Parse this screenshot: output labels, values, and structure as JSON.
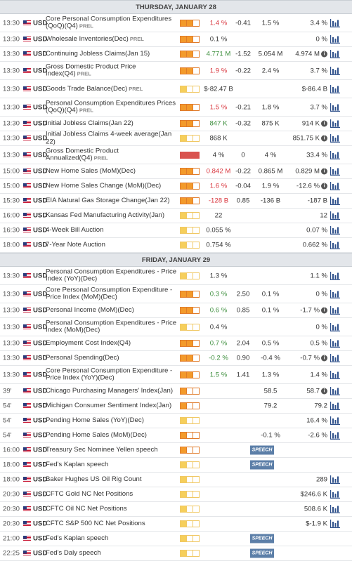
{
  "colors": {
    "high_impact": "#f39a2b",
    "low_impact": "#f6cf5b",
    "red_value": "#d9363e",
    "green_value": "#3e8f3e",
    "speech_badge": "#5c7fa8"
  },
  "icons": {
    "flag": "us-flag-icon",
    "chart": "bar-chart-icon",
    "info": "info-icon"
  },
  "days": [
    {
      "title": "THURSDAY, JANUARY 28",
      "rows": [
        {
          "time": "13:30",
          "currency": "USD",
          "event": "Core Personal Consumption Expenditures (QoQ)(Q4)",
          "prel": "PREL",
          "impact": "high",
          "actual": "1.4 %",
          "actual_color": "red",
          "deviation": "-0.41",
          "consensus": "1.5 %",
          "previous": "3.4 %",
          "info": false,
          "chart": true,
          "h": 26
        },
        {
          "time": "13:30",
          "currency": "USD",
          "event": "Wholesale Inventories(Dec)",
          "prel": "PREL",
          "impact": "high",
          "actual": "0.1 %",
          "actual_color": "",
          "deviation": "",
          "consensus": "",
          "previous": "0 %",
          "info": false,
          "chart": true,
          "h": 21
        },
        {
          "time": "13:30",
          "currency": "USD",
          "event": "Continuing Jobless Claims(Jan 15)",
          "prel": "",
          "impact": "high",
          "actual": "4.771 M",
          "actual_color": "green",
          "deviation": "-1.52",
          "consensus": "5.054 M",
          "previous": "4.974 M",
          "info": true,
          "chart": true,
          "h": 21
        },
        {
          "time": "13:30",
          "currency": "USD",
          "event": "Gross Domestic Product Price Index(Q4)",
          "prel": "PREL",
          "impact": "high",
          "actual": "1.9 %",
          "actual_color": "red",
          "deviation": "-0.22",
          "consensus": "2.4 %",
          "previous": "3.7 %",
          "info": false,
          "chart": true,
          "h": 26
        },
        {
          "time": "13:30",
          "currency": "USD",
          "event": "Goods Trade Balance(Dec)",
          "prel": "PREL",
          "impact": "low",
          "actual": "$-82.47 B",
          "actual_color": "",
          "deviation": "",
          "consensus": "",
          "previous": "$-86.4 B",
          "info": false,
          "chart": true,
          "h": 26
        },
        {
          "time": "13:30",
          "currency": "USD",
          "event": "Personal Consumption Expenditures Prices (QoQ)(Q4)",
          "prel": "PREL",
          "impact": "high",
          "actual": "1.5 %",
          "actual_color": "red",
          "deviation": "-0.21",
          "consensus": "1.8 %",
          "previous": "3.7 %",
          "info": false,
          "chart": true,
          "h": 26
        },
        {
          "time": "13:30",
          "currency": "USD",
          "event": "Initial Jobless Claims(Jan 22)",
          "prel": "",
          "impact": "high",
          "actual": "847 K",
          "actual_color": "green",
          "deviation": "-0.32",
          "consensus": "875 K",
          "previous": "914 K",
          "info": true,
          "chart": true,
          "h": 21
        },
        {
          "time": "13:30",
          "currency": "USD",
          "event": "Initial Jobless Claims 4-week average(Jan 22)",
          "prel": "",
          "impact": "low",
          "actual": "868 K",
          "actual_color": "",
          "deviation": "",
          "consensus": "",
          "previous": "851.75 K",
          "info": true,
          "chart": true,
          "h": 21
        },
        {
          "time": "13:30",
          "currency": "USD",
          "event": "Gross Domestic Product Annualized(Q4)",
          "prel": "PREL",
          "impact": "red",
          "actual": "4 %",
          "actual_color": "",
          "deviation": "0",
          "consensus": "4 %",
          "previous": "33.4 %",
          "info": false,
          "chart": true,
          "h": 26
        },
        {
          "time": "15:00",
          "currency": "USD",
          "event": "New Home Sales (MoM)(Dec)",
          "prel": "",
          "impact": "high",
          "actual": "0.842 M",
          "actual_color": "red",
          "deviation": "-0.22",
          "consensus": "0.865 M",
          "previous": "0.829 M",
          "info": true,
          "chart": true,
          "h": 21
        },
        {
          "time": "15:00",
          "currency": "USD",
          "event": "New Home Sales Change (MoM)(Dec)",
          "prel": "",
          "impact": "high",
          "actual": "1.6 %",
          "actual_color": "red",
          "deviation": "-0.04",
          "consensus": "1.9 %",
          "previous": "-12.6 %",
          "info": true,
          "chart": true,
          "h": 21
        },
        {
          "time": "15:30",
          "currency": "USD",
          "event": "EIA Natural Gas Storage Change(Jan 22)",
          "prel": "",
          "impact": "high",
          "actual": "-128 B",
          "actual_color": "red",
          "deviation": "0.85",
          "consensus": "-136 B",
          "previous": "-187 B",
          "info": false,
          "chart": true,
          "h": 21
        },
        {
          "time": "16:00",
          "currency": "USD",
          "event": "Kansas Fed Manufacturing Activity(Jan)",
          "prel": "",
          "impact": "low",
          "actual": "22",
          "actual_color": "",
          "deviation": "",
          "consensus": "",
          "previous": "12",
          "info": false,
          "chart": true,
          "h": 21
        },
        {
          "time": "16:30",
          "currency": "USD",
          "event": "4-Week Bill Auction",
          "prel": "",
          "impact": "low",
          "actual": "0.055 %",
          "actual_color": "",
          "deviation": "",
          "consensus": "",
          "previous": "0.07 %",
          "info": false,
          "chart": true,
          "h": 21
        },
        {
          "time": "18:00",
          "currency": "USD",
          "event": "7-Year Note Auction",
          "prel": "",
          "impact": "low",
          "actual": "0.754 %",
          "actual_color": "",
          "deviation": "",
          "consensus": "",
          "previous": "0.662 %",
          "info": false,
          "chart": true,
          "h": 21
        }
      ]
    },
    {
      "title": "FRIDAY, JANUARY 29",
      "rows": [
        {
          "time": "13:30",
          "currency": "USD",
          "event": "Personal Consumption Expenditures - Price Index (YoY)(Dec)",
          "prel": "",
          "impact": "low",
          "actual": "1.3 %",
          "actual_color": "",
          "deviation": "",
          "consensus": "",
          "previous": "1.1 %",
          "info": false,
          "chart": true,
          "h": 26
        },
        {
          "time": "13:30",
          "currency": "USD",
          "event": "Core Personal Consumption Expenditure - Price Index (MoM)(Dec)",
          "prel": "",
          "impact": "high",
          "actual": "0.3 %",
          "actual_color": "green",
          "deviation": "2.50",
          "consensus": "0.1 %",
          "previous": "0 %",
          "info": false,
          "chart": true,
          "h": 26
        },
        {
          "time": "13:30",
          "currency": "USD",
          "event": "Personal Income (MoM)(Dec)",
          "prel": "",
          "impact": "high",
          "actual": "0.6 %",
          "actual_color": "green",
          "deviation": "0.85",
          "consensus": "0.1 %",
          "previous": "-1.7 %",
          "info": true,
          "chart": true,
          "h": 21
        },
        {
          "time": "13:30",
          "currency": "USD",
          "event": "Personal Consumption Expenditures - Price Index (MoM)(Dec)",
          "prel": "",
          "impact": "low",
          "actual": "0.4 %",
          "actual_color": "",
          "deviation": "",
          "consensus": "",
          "previous": "0 %",
          "info": false,
          "chart": true,
          "h": 26
        },
        {
          "time": "13:30",
          "currency": "USD",
          "event": "Employment Cost Index(Q4)",
          "prel": "",
          "impact": "high",
          "actual": "0.7 %",
          "actual_color": "green",
          "deviation": "2.04",
          "consensus": "0.5 %",
          "previous": "0.5 %",
          "info": false,
          "chart": true,
          "h": 21
        },
        {
          "time": "13:30",
          "currency": "USD",
          "event": "Personal Spending(Dec)",
          "prel": "",
          "impact": "high",
          "actual": "-0.2 %",
          "actual_color": "green",
          "deviation": "0.90",
          "consensus": "-0.4 %",
          "previous": "-0.7 %",
          "info": true,
          "chart": true,
          "h": 21
        },
        {
          "time": "13:30",
          "currency": "USD",
          "event": "Core Personal Consumption Expenditure - Price Index (YoY)(Dec)",
          "prel": "",
          "impact": "high",
          "actual": "1.5 %",
          "actual_color": "green",
          "deviation": "1.41",
          "consensus": "1.3 %",
          "previous": "1.4 %",
          "info": false,
          "chart": true,
          "h": 26
        },
        {
          "time": "39'",
          "currency": "USD",
          "event": "Chicago Purchasing Managers' Index(Jan)",
          "prel": "",
          "impact": "high-outline",
          "actual": "",
          "actual_color": "",
          "deviation": "",
          "consensus": "58.5",
          "previous": "58.7",
          "info": true,
          "chart": true,
          "h": 21
        },
        {
          "time": "54'",
          "currency": "USD",
          "event": "Michigan Consumer Sentiment Index(Jan)",
          "prel": "",
          "impact": "high-outline",
          "actual": "",
          "actual_color": "",
          "deviation": "",
          "consensus": "79.2",
          "previous": "79.2",
          "info": false,
          "chart": true,
          "h": 21
        },
        {
          "time": "54'",
          "currency": "USD",
          "event": "Pending Home Sales (YoY)(Dec)",
          "prel": "",
          "impact": "low-outline",
          "actual": "",
          "actual_color": "",
          "deviation": "",
          "consensus": "",
          "previous": "16.4 %",
          "info": false,
          "chart": true,
          "h": 21
        },
        {
          "time": "54'",
          "currency": "USD",
          "event": "Pending Home Sales (MoM)(Dec)",
          "prel": "",
          "impact": "high-outline",
          "actual": "",
          "actual_color": "",
          "deviation": "",
          "consensus": "-0.1 %",
          "previous": "-2.6 %",
          "info": false,
          "chart": true,
          "h": 21
        },
        {
          "time": "16:00",
          "currency": "USD",
          "event": "Treasury Sec Nominee Yellen speech",
          "prel": "",
          "impact": "high-outline",
          "actual": "",
          "actual_color": "",
          "deviation": "",
          "consensus": "",
          "previous": "",
          "info": false,
          "chart": false,
          "speech": "SPEECH",
          "h": 21
        },
        {
          "time": "18:00",
          "currency": "USD",
          "event": "Fed's Kaplan speech",
          "prel": "",
          "impact": "low-outline",
          "actual": "",
          "actual_color": "",
          "deviation": "",
          "consensus": "",
          "previous": "",
          "info": false,
          "chart": false,
          "speech": "SPEECH",
          "h": 21
        },
        {
          "time": "18:00",
          "currency": "USD",
          "event": "Baker Hughes US Oil Rig Count",
          "prel": "",
          "impact": "low-outline",
          "actual": "",
          "actual_color": "",
          "deviation": "",
          "consensus": "",
          "previous": "289",
          "info": false,
          "chart": true,
          "h": 21
        },
        {
          "time": "20:30",
          "currency": "USD",
          "event": "CFTC Gold NC Net Positions",
          "prel": "",
          "impact": "low-outline",
          "actual": "",
          "actual_color": "",
          "deviation": "",
          "consensus": "",
          "previous": "$246.6 K",
          "info": false,
          "chart": true,
          "h": 21
        },
        {
          "time": "20:30",
          "currency": "USD",
          "event": "CFTC Oil NC Net Positions",
          "prel": "",
          "impact": "low-outline",
          "actual": "",
          "actual_color": "",
          "deviation": "",
          "consensus": "",
          "previous": "508.6 K",
          "info": false,
          "chart": true,
          "h": 21
        },
        {
          "time": "20:30",
          "currency": "USD",
          "event": "CFTC S&P 500 NC Net Positions",
          "prel": "",
          "impact": "low-outline",
          "actual": "",
          "actual_color": "",
          "deviation": "",
          "consensus": "",
          "previous": "$-1.9 K",
          "info": false,
          "chart": true,
          "h": 21
        },
        {
          "time": "21:00",
          "currency": "USD",
          "event": "Fed's Kaplan speech",
          "prel": "",
          "impact": "low-outline",
          "actual": "",
          "actual_color": "",
          "deviation": "",
          "consensus": "",
          "previous": "",
          "info": false,
          "chart": false,
          "speech": "SPEECH",
          "h": 21
        },
        {
          "time": "22:25",
          "currency": "USD",
          "event": "Fed's Daly speech",
          "prel": "",
          "impact": "low-outline",
          "actual": "",
          "actual_color": "",
          "deviation": "",
          "consensus": "",
          "previous": "",
          "info": false,
          "chart": false,
          "speech": "SPEECH",
          "h": 21
        }
      ]
    }
  ]
}
